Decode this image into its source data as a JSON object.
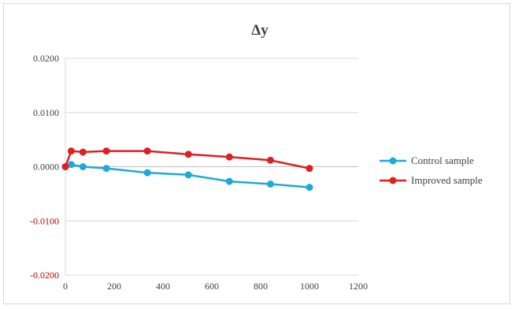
{
  "chart_data": {
    "type": "line",
    "title": "Δy",
    "xlabel": "",
    "ylabel": "",
    "xlim": [
      0,
      1200
    ],
    "ylim": [
      -0.02,
      0.02
    ],
    "x_ticks": [
      0,
      200,
      400,
      600,
      800,
      1000,
      1200
    ],
    "y_ticks": [
      0.02,
      0.01,
      0.0,
      -0.01,
      -0.02
    ],
    "x_tick_labels": [
      "0",
      "200",
      "400",
      "600",
      "800",
      "1000",
      "1200"
    ],
    "y_tick_labels": [
      "0.0200",
      "0.0100",
      "0.0000",
      "-0.0100",
      "-0.0200"
    ],
    "grid": "horizontal",
    "legend_position": "right",
    "series": [
      {
        "name": "Control sample",
        "color": "#1fa9d9",
        "x": [
          0,
          24,
          72,
          168,
          336,
          504,
          672,
          840,
          1000
        ],
        "y": [
          0.0,
          0.0004,
          0.0,
          -0.0003,
          -0.0011,
          -0.0015,
          -0.0027,
          -0.0032,
          -0.0038
        ]
      },
      {
        "name": "Improved sample",
        "color": "#e01f1f",
        "x": [
          0,
          24,
          72,
          168,
          336,
          504,
          672,
          840,
          1000
        ],
        "y": [
          0.0,
          0.0029,
          0.0027,
          0.0029,
          0.0029,
          0.0023,
          0.0018,
          0.0012,
          -0.0003
        ]
      }
    ],
    "positive_tick_color": "#404040",
    "negative_tick_color": "#c00000"
  }
}
